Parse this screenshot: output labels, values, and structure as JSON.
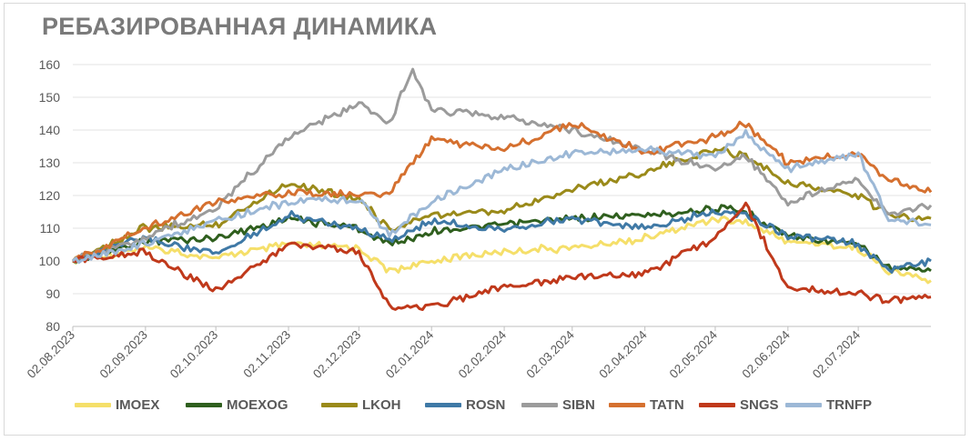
{
  "chart_data": {
    "type": "line",
    "title": "РЕБАЗИРОВАННАЯ ДИНАМИКА",
    "xlabel": "",
    "ylabel": "",
    "ylim": [
      80,
      160
    ],
    "yticks": [
      80,
      90,
      100,
      110,
      120,
      130,
      140,
      150,
      160
    ],
    "x_start": "02.08.2023",
    "x_end": "02.08.2024",
    "xticks": [
      "02.08.2023",
      "02.09.2023",
      "02.10.2023",
      "02.11.2023",
      "02.12.2023",
      "02.01.2024",
      "02.02.2024",
      "02.03.2024",
      "02.04.2024",
      "02.05.2024",
      "02.06.2024",
      "02.07.2024"
    ],
    "grid": "horizontal",
    "legend_position": "bottom",
    "series": [
      {
        "name": "IMOEX",
        "color": "#f5df6a",
        "points": [
          [
            "02.08.2023",
            100
          ],
          [
            "01.09.2023",
            104
          ],
          [
            "02.10.2023",
            101
          ],
          [
            "02.11.2023",
            105
          ],
          [
            "02.12.2023",
            104
          ],
          [
            "15.12.2023",
            97
          ],
          [
            "02.01.2024",
            100
          ],
          [
            "02.02.2024",
            103
          ],
          [
            "02.03.2024",
            104
          ],
          [
            "02.04.2024",
            107
          ],
          [
            "02.05.2024",
            113
          ],
          [
            "15.05.2024",
            112
          ],
          [
            "02.06.2024",
            106
          ],
          [
            "02.07.2024",
            104
          ],
          [
            "15.07.2024",
            97
          ],
          [
            "02.08.2024",
            94
          ]
        ]
      },
      {
        "name": "MOEXOG",
        "color": "#2f5f1e",
        "points": [
          [
            "02.08.2023",
            100
          ],
          [
            "01.09.2023",
            106
          ],
          [
            "02.10.2023",
            107
          ],
          [
            "02.11.2023",
            113
          ],
          [
            "02.12.2023",
            110
          ],
          [
            "15.12.2023",
            105
          ],
          [
            "02.01.2024",
            109
          ],
          [
            "02.02.2024",
            111
          ],
          [
            "02.03.2024",
            113
          ],
          [
            "02.04.2024",
            114
          ],
          [
            "02.05.2024",
            116
          ],
          [
            "15.05.2024",
            115
          ],
          [
            "02.06.2024",
            108
          ],
          [
            "02.07.2024",
            105
          ],
          [
            "15.07.2024",
            98
          ],
          [
            "02.08.2024",
            97
          ]
        ]
      },
      {
        "name": "LKOH",
        "color": "#9a8a1a",
        "points": [
          [
            "02.08.2023",
            100
          ],
          [
            "01.09.2023",
            110
          ],
          [
            "02.10.2023",
            111
          ],
          [
            "02.11.2023",
            124
          ],
          [
            "02.12.2023",
            119
          ],
          [
            "15.12.2023",
            110
          ],
          [
            "02.01.2024",
            114
          ],
          [
            "02.02.2024",
            115
          ],
          [
            "02.03.2024",
            122
          ],
          [
            "02.04.2024",
            127
          ],
          [
            "02.05.2024",
            134
          ],
          [
            "15.05.2024",
            132
          ],
          [
            "02.06.2024",
            124
          ],
          [
            "02.07.2024",
            120
          ],
          [
            "15.07.2024",
            114
          ],
          [
            "02.08.2024",
            113
          ]
        ]
      },
      {
        "name": "ROSN",
        "color": "#3f79a6",
        "points": [
          [
            "02.08.2023",
            100
          ],
          [
            "01.09.2023",
            107
          ],
          [
            "02.10.2023",
            102
          ],
          [
            "02.11.2023",
            114
          ],
          [
            "02.12.2023",
            110
          ],
          [
            "15.12.2023",
            106
          ],
          [
            "02.01.2024",
            112
          ],
          [
            "02.02.2024",
            110
          ],
          [
            "02.03.2024",
            113
          ],
          [
            "02.04.2024",
            110
          ],
          [
            "02.05.2024",
            115
          ],
          [
            "15.05.2024",
            114
          ],
          [
            "02.06.2024",
            108
          ],
          [
            "02.07.2024",
            105
          ],
          [
            "15.07.2024",
            97
          ],
          [
            "02.08.2024",
            100
          ]
        ]
      },
      {
        "name": "SIBN",
        "color": "#9b9b9b",
        "points": [
          [
            "02.08.2023",
            100
          ],
          [
            "01.09.2023",
            107
          ],
          [
            "02.10.2023",
            116
          ],
          [
            "02.11.2023",
            138
          ],
          [
            "02.12.2023",
            148
          ],
          [
            "15.12.2023",
            142
          ],
          [
            "25.12.2023",
            159
          ],
          [
            "02.01.2024",
            146
          ],
          [
            "02.02.2024",
            144
          ],
          [
            "02.03.2024",
            140
          ],
          [
            "02.04.2024",
            134
          ],
          [
            "02.05.2024",
            128
          ],
          [
            "15.05.2024",
            132
          ],
          [
            "02.06.2024",
            118
          ],
          [
            "02.07.2024",
            125
          ],
          [
            "15.07.2024",
            114
          ],
          [
            "02.08.2024",
            117
          ]
        ]
      },
      {
        "name": "TATN",
        "color": "#d5702f",
        "points": [
          [
            "02.08.2023",
            100
          ],
          [
            "01.09.2023",
            110
          ],
          [
            "02.10.2023",
            118
          ],
          [
            "02.11.2023",
            121
          ],
          [
            "02.12.2023",
            120
          ],
          [
            "15.12.2023",
            121
          ],
          [
            "02.01.2024",
            137
          ],
          [
            "02.02.2024",
            134
          ],
          [
            "02.03.2024",
            142
          ],
          [
            "02.04.2024",
            133
          ],
          [
            "02.05.2024",
            138
          ],
          [
            "15.05.2024",
            142
          ],
          [
            "02.06.2024",
            130
          ],
          [
            "02.07.2024",
            133
          ],
          [
            "15.07.2024",
            125
          ],
          [
            "02.08.2024",
            121
          ]
        ]
      },
      {
        "name": "SNGS",
        "color": "#c0391b",
        "points": [
          [
            "02.08.2023",
            100
          ],
          [
            "01.09.2023",
            103
          ],
          [
            "02.10.2023",
            91
          ],
          [
            "02.11.2023",
            105
          ],
          [
            "02.12.2023",
            103
          ],
          [
            "15.12.2023",
            86
          ],
          [
            "02.01.2024",
            86
          ],
          [
            "02.02.2024",
            92
          ],
          [
            "02.03.2024",
            95
          ],
          [
            "02.04.2024",
            96
          ],
          [
            "02.05.2024",
            107
          ],
          [
            "15.05.2024",
            117
          ],
          [
            "02.06.2024",
            92
          ],
          [
            "02.07.2024",
            90
          ],
          [
            "15.07.2024",
            88
          ],
          [
            "02.08.2024",
            89
          ]
        ]
      },
      {
        "name": "TRNFP",
        "color": "#9cb8d6",
        "points": [
          [
            "02.08.2023",
            100
          ],
          [
            "01.09.2023",
            105
          ],
          [
            "02.10.2023",
            112
          ],
          [
            "02.11.2023",
            118
          ],
          [
            "02.12.2023",
            119
          ],
          [
            "15.12.2023",
            108
          ],
          [
            "02.01.2024",
            118
          ],
          [
            "02.02.2024",
            128
          ],
          [
            "02.03.2024",
            133
          ],
          [
            "02.04.2024",
            134
          ],
          [
            "02.05.2024",
            132
          ],
          [
            "15.05.2024",
            139
          ],
          [
            "02.06.2024",
            128
          ],
          [
            "02.07.2024",
            133
          ],
          [
            "15.07.2024",
            113
          ],
          [
            "02.08.2024",
            111
          ]
        ]
      }
    ]
  }
}
